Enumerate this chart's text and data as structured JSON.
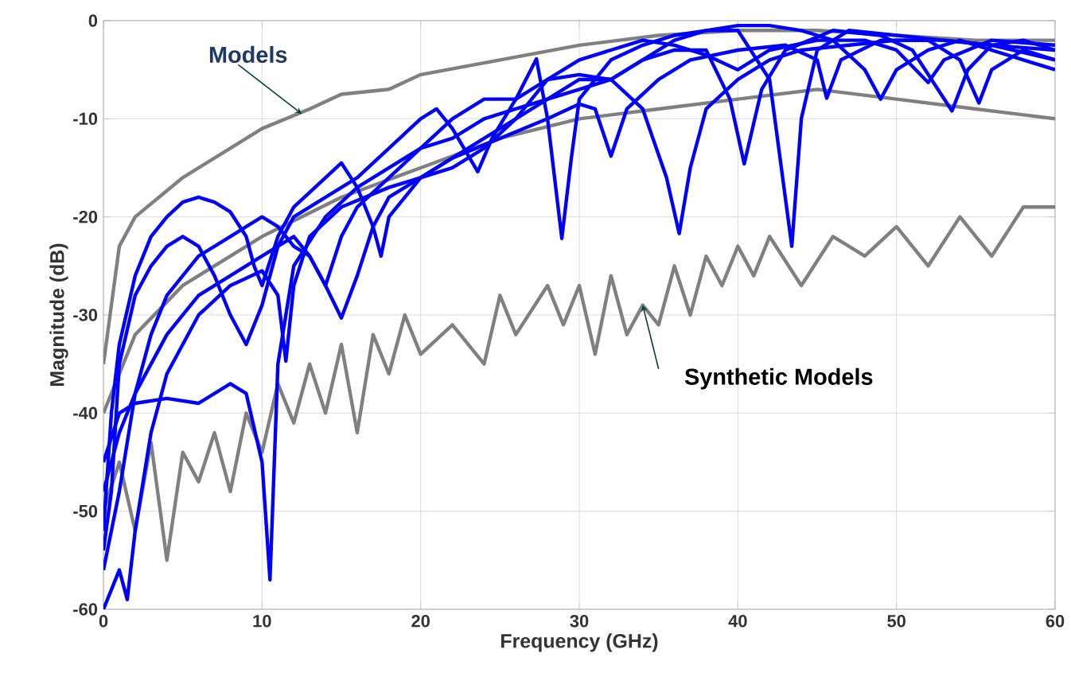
{
  "chart_data": {
    "type": "line",
    "xlabel": "Frequency (GHz)",
    "ylabel": "Magnitude (dB)",
    "xlim": [
      0,
      60
    ],
    "ylim": [
      -60,
      0
    ],
    "xticks": [
      0,
      10,
      20,
      30,
      40,
      50,
      60
    ],
    "yticks": [
      -60,
      -50,
      -40,
      -30,
      -20,
      -10,
      0
    ],
    "grid": true,
    "annotations": [
      {
        "text": "Models",
        "x": 12.5,
        "y": -9.5
      },
      {
        "text": "Synthetic Models",
        "x": 34,
        "y": -29
      }
    ],
    "series": [
      {
        "color": "#808080",
        "x": [
          0,
          1,
          2,
          5,
          8,
          10,
          13,
          15,
          18,
          20,
          25,
          30,
          35,
          40,
          45,
          50,
          55,
          60
        ],
        "values": [
          -35,
          -23,
          -20,
          -16,
          -13,
          -11,
          -9,
          -7.5,
          -7,
          -5.5,
          -4,
          -2.5,
          -1.5,
          -1,
          -1,
          null,
          -2,
          -2
        ]
      },
      {
        "color": "#808080",
        "x": [
          0,
          2,
          5,
          10,
          15,
          20,
          25,
          30,
          35,
          40,
          45,
          50,
          55,
          60
        ],
        "values": [
          -40,
          -32,
          -27,
          -22,
          -18,
          -15,
          -12,
          -10,
          -9,
          -8,
          -7,
          -8,
          -9,
          -10
        ]
      },
      {
        "color": "#808080",
        "x": [
          0,
          1,
          2,
          3,
          4,
          5,
          6,
          7,
          8,
          9,
          10,
          11,
          12,
          13,
          14,
          15,
          16,
          17,
          18,
          19,
          20,
          22,
          24,
          25,
          26,
          28,
          29,
          30,
          31,
          32,
          33,
          34,
          35,
          36,
          37,
          38,
          39,
          40,
          41,
          42,
          44,
          46,
          48,
          50,
          52,
          54,
          56,
          58,
          60
        ],
        "values": [
          -50,
          -45,
          -52,
          -43,
          -55,
          -44,
          -47,
          -42,
          -48,
          -40,
          -44,
          -37,
          -41,
          -35,
          -40,
          -33,
          -42,
          -32,
          -36,
          -30,
          -34,
          -31,
          -35,
          -28,
          -32,
          -27,
          -31,
          -27,
          -34,
          -26,
          -32,
          -29,
          -31,
          -25,
          -30,
          -24,
          -27,
          -23,
          -26,
          -22,
          -27,
          -22,
          -24,
          -21,
          -25,
          -20,
          -24,
          -19,
          -19
        ]
      },
      {
        "color": "#0000ff",
        "x": [
          0,
          1,
          2,
          4,
          6,
          8,
          9,
          10,
          10.5,
          11,
          12,
          14,
          16,
          18,
          20,
          22,
          24,
          26,
          28,
          30,
          32,
          34,
          36,
          38,
          40,
          42,
          44,
          46,
          48,
          49,
          50,
          52,
          54,
          56,
          58,
          60
        ],
        "values": [
          -45,
          -40,
          -39,
          -38.5,
          -39,
          -37,
          -38,
          -45,
          -57,
          -35,
          -25,
          -20,
          -17,
          -15,
          -13,
          -12,
          -10,
          -9,
          -8,
          -7,
          -6,
          -4,
          -2,
          -1,
          -0.5,
          -0.5,
          -1,
          -2,
          -5,
          -8,
          -5,
          -3,
          -2,
          -3,
          -4,
          -5
        ]
      },
      {
        "color": "#0000ff",
        "x": [
          0,
          0.5,
          1,
          2,
          3,
          4,
          5,
          6,
          7,
          8,
          9,
          9.5,
          10,
          11,
          12,
          13,
          14,
          15,
          16,
          17,
          17.5,
          18,
          20,
          22,
          25,
          28,
          30,
          31,
          32,
          33,
          35,
          37,
          40,
          43,
          45,
          45.6,
          46.5,
          49,
          52,
          54,
          55.2,
          56,
          58,
          60
        ],
        "values": [
          -52,
          -40,
          -33,
          -26,
          -22,
          -20,
          -18.5,
          -18,
          -18.5,
          -19.5,
          -22,
          -25,
          -27,
          -22,
          -19,
          -17.5,
          -16,
          -14.5,
          -17,
          -21,
          -24,
          -20,
          -16,
          -14,
          -12,
          -10,
          -8.5,
          -9,
          -13.8,
          -9,
          -6,
          -4,
          -3,
          -2.5,
          -4,
          -7.9,
          -4,
          -2,
          -2,
          -4,
          -8.4,
          -5,
          -3,
          -4
        ]
      },
      {
        "color": "#0000ff",
        "x": [
          0,
          0.5,
          1,
          1.5,
          2,
          3,
          4,
          6,
          8,
          10,
          11,
          11.5,
          12,
          13,
          15,
          18,
          20,
          22,
          24,
          26,
          28,
          30,
          32,
          34,
          35.5,
          36.3,
          37,
          38,
          40,
          42,
          44,
          47,
          50,
          53,
          56,
          60
        ],
        "values": [
          -60,
          -58,
          -56,
          -59,
          -52,
          -42,
          -36,
          -30,
          -27,
          -25.5,
          -28,
          -34.7,
          -27,
          -22,
          -19,
          -17,
          -16,
          -14,
          -12,
          -10,
          -8,
          -6,
          -6,
          -9,
          -16,
          -21.7,
          -15,
          -9,
          -6,
          -4,
          -3,
          -2.5,
          -2,
          -2,
          -2.5,
          -4
        ]
      },
      {
        "color": "#0000ff",
        "x": [
          0,
          1,
          2,
          3,
          4,
          6,
          8,
          9,
          10,
          11,
          12,
          13,
          14,
          15,
          16,
          18,
          20,
          22,
          24,
          26,
          27.3,
          28,
          28.9,
          29.5,
          30,
          32,
          34,
          36,
          38,
          40,
          42,
          43.4,
          44,
          45,
          47,
          50,
          53,
          56,
          60
        ],
        "values": [
          -56,
          -48,
          -38,
          -32,
          -28,
          -24,
          -22,
          -21,
          -20,
          -21,
          -23,
          -24,
          -27,
          -22,
          -19,
          -16,
          -13,
          -10,
          -8,
          -8,
          -3.9,
          -10,
          -22.2,
          -14,
          -8,
          -4,
          -2.5,
          -1.5,
          -1,
          -1,
          -6,
          -23,
          -10,
          -3,
          -1,
          -1.5,
          -2,
          -2.5,
          -3
        ]
      },
      {
        "color": "#0000ff",
        "x": [
          0,
          0.5,
          1,
          2,
          3,
          4,
          5,
          6,
          7,
          8,
          9,
          10,
          11,
          12,
          14,
          16,
          18,
          20,
          21,
          22,
          23.6,
          24.5,
          26,
          28,
          30,
          32,
          34,
          36,
          38,
          39.5,
          40.4,
          41.5,
          43,
          46,
          49,
          51,
          53.5,
          54.5,
          56,
          58,
          60
        ],
        "values": [
          -54,
          -48,
          -35,
          -28,
          -25,
          -23,
          -22,
          -23,
          -26,
          -30,
          -33,
          -29,
          -23,
          -20,
          -18,
          -16,
          -13,
          -10,
          -9,
          -11,
          -15.4,
          -12,
          -8,
          -6,
          -5.5,
          -6,
          -4,
          -3,
          -3,
          -8,
          -14.6,
          -7,
          -3,
          -1,
          -1.5,
          -3,
          -9.2,
          -5,
          -2.5,
          -2,
          -3
        ]
      },
      {
        "color": "#0000ff",
        "x": [
          0,
          1,
          2,
          3,
          4,
          5,
          6,
          8,
          10,
          11,
          12,
          13,
          14,
          15,
          16,
          17,
          18,
          20,
          22,
          24,
          26,
          28,
          30,
          32,
          34,
          36,
          38,
          40,
          42,
          45,
          48,
          50,
          52,
          53,
          56,
          60
        ],
        "values": [
          -48,
          -42,
          -38,
          -35,
          -32,
          -30,
          -28,
          -26,
          -24,
          -23,
          -22,
          -24,
          -27,
          -30.3,
          -26,
          -21,
          -18,
          -16,
          -15,
          -13,
          -10,
          -6,
          -4,
          -3,
          -2,
          -2.5,
          -3.5,
          -5,
          -3,
          -2,
          -2,
          -3,
          -6.3,
          -4,
          -2,
          -2.5
        ]
      }
    ]
  }
}
